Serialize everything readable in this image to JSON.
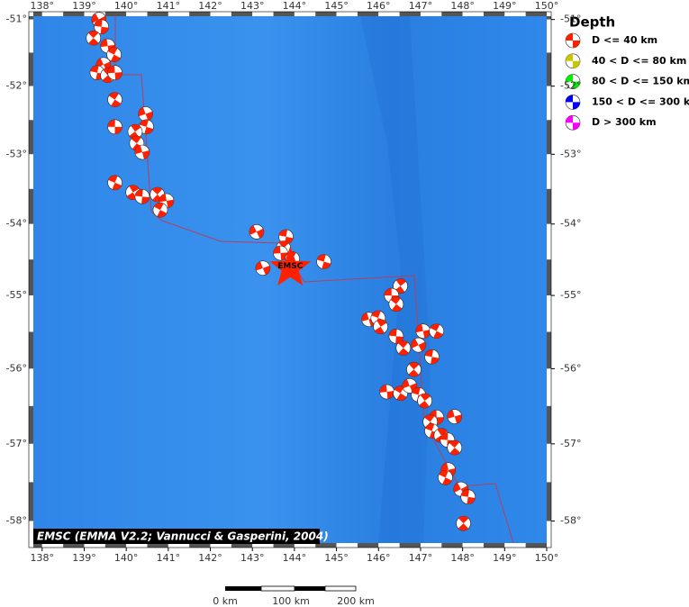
{
  "map": {
    "xlim": [
      137.79,
      150
    ],
    "ylim": [
      -50.95,
      -58.28
    ],
    "lon_ticks": [
      {
        "value": 138,
        "label": "138°"
      },
      {
        "value": 139,
        "label": "139°"
      },
      {
        "value": 140,
        "label": "140°"
      },
      {
        "value": 141,
        "label": "141°"
      },
      {
        "value": 142,
        "label": "142°"
      },
      {
        "value": 143,
        "label": "143°"
      },
      {
        "value": 144,
        "label": "144°"
      },
      {
        "value": 145,
        "label": "145°"
      },
      {
        "value": 146,
        "label": "146°"
      },
      {
        "value": 147,
        "label": "147°"
      },
      {
        "value": 148,
        "label": "148°"
      },
      {
        "value": 149,
        "label": "149°"
      },
      {
        "value": 150,
        "label": "150°"
      }
    ],
    "lat_ticks": [
      {
        "value": -51,
        "label": "-51°"
      },
      {
        "value": -52,
        "label": "-52°"
      },
      {
        "value": -53,
        "label": "-53°"
      },
      {
        "value": -54,
        "label": "-54°"
      },
      {
        "value": -55,
        "label": "-55°"
      },
      {
        "value": -56,
        "label": "-56°"
      },
      {
        "value": -57,
        "label": "-57°"
      },
      {
        "value": -58,
        "label": "-58°"
      }
    ],
    "epicenter": {
      "label": "EMSC",
      "lon": 143.9,
      "lat": -54.62
    },
    "events": [
      {
        "lon": 139.35,
        "lat": -51.0
      },
      {
        "lon": 139.41,
        "lat": -51.11
      },
      {
        "lon": 139.22,
        "lat": -51.28
      },
      {
        "lon": 139.56,
        "lat": -51.4
      },
      {
        "lon": 139.71,
        "lat": -51.53
      },
      {
        "lon": 139.46,
        "lat": -51.68
      },
      {
        "lon": 139.31,
        "lat": -51.8
      },
      {
        "lon": 139.56,
        "lat": -51.84
      },
      {
        "lon": 139.73,
        "lat": -51.8
      },
      {
        "lon": 139.73,
        "lat": -52.2
      },
      {
        "lon": 140.46,
        "lat": -52.41
      },
      {
        "lon": 140.48,
        "lat": -52.6
      },
      {
        "lon": 140.21,
        "lat": -52.67
      },
      {
        "lon": 139.73,
        "lat": -52.6
      },
      {
        "lon": 140.25,
        "lat": -52.84
      },
      {
        "lon": 140.38,
        "lat": -52.97
      },
      {
        "lon": 139.73,
        "lat": -53.41
      },
      {
        "lon": 140.16,
        "lat": -53.55
      },
      {
        "lon": 140.38,
        "lat": -53.61
      },
      {
        "lon": 140.74,
        "lat": -53.58
      },
      {
        "lon": 140.96,
        "lat": -53.67
      },
      {
        "lon": 140.81,
        "lat": -53.8
      },
      {
        "lon": 143.1,
        "lat": -54.11
      },
      {
        "lon": 143.8,
        "lat": -54.18
      },
      {
        "lon": 143.74,
        "lat": -54.34
      },
      {
        "lon": 143.67,
        "lat": -54.41
      },
      {
        "lon": 143.95,
        "lat": -54.49
      },
      {
        "lon": 143.25,
        "lat": -54.62
      },
      {
        "lon": 144.7,
        "lat": -54.53
      },
      {
        "lon": 146.52,
        "lat": -54.87
      },
      {
        "lon": 146.31,
        "lat": -55.0
      },
      {
        "lon": 146.42,
        "lat": -55.12
      },
      {
        "lon": 145.77,
        "lat": -55.33
      },
      {
        "lon": 145.99,
        "lat": -55.31
      },
      {
        "lon": 146.05,
        "lat": -55.43
      },
      {
        "lon": 146.42,
        "lat": -55.56
      },
      {
        "lon": 146.59,
        "lat": -55.72
      },
      {
        "lon": 147.06,
        "lat": -55.49
      },
      {
        "lon": 147.38,
        "lat": -55.49
      },
      {
        "lon": 146.95,
        "lat": -55.68
      },
      {
        "lon": 147.27,
        "lat": -55.84
      },
      {
        "lon": 146.84,
        "lat": -56.01
      },
      {
        "lon": 146.2,
        "lat": -56.31
      },
      {
        "lon": 146.52,
        "lat": -56.33
      },
      {
        "lon": 146.74,
        "lat": -56.23
      },
      {
        "lon": 146.95,
        "lat": -56.35
      },
      {
        "lon": 147.1,
        "lat": -56.43
      },
      {
        "lon": 147.38,
        "lat": -56.65
      },
      {
        "lon": 147.23,
        "lat": -56.71
      },
      {
        "lon": 147.81,
        "lat": -56.64
      },
      {
        "lon": 147.27,
        "lat": -56.83
      },
      {
        "lon": 147.49,
        "lat": -56.89
      },
      {
        "lon": 147.64,
        "lat": -56.95
      },
      {
        "lon": 147.81,
        "lat": -57.05
      },
      {
        "lon": 147.66,
        "lat": -57.34
      },
      {
        "lon": 147.59,
        "lat": -57.44
      },
      {
        "lon": 147.96,
        "lat": -57.59
      },
      {
        "lon": 148.13,
        "lat": -57.69
      },
      {
        "lon": 148.02,
        "lat": -58.03
      }
    ],
    "attribution": "EMSC (EMMA V2.2; Vannucci & Gasperini, 2004)"
  },
  "legend": {
    "title": "Depth",
    "entries": [
      {
        "label": "D <= 40 km",
        "color": "#ff2000"
      },
      {
        "label": "40 < D <= 80 km",
        "color": "#c8c800"
      },
      {
        "label": "80 < D <= 150 km",
        "color": "#00ee00"
      },
      {
        "label": "150 < D <= 300 km",
        "color": "#0000ff"
      },
      {
        "label": "D > 300 km",
        "color": "#ff00ff"
      }
    ]
  },
  "scale_bar": {
    "labels": [
      "0 km",
      "100 km",
      "200 km"
    ]
  }
}
